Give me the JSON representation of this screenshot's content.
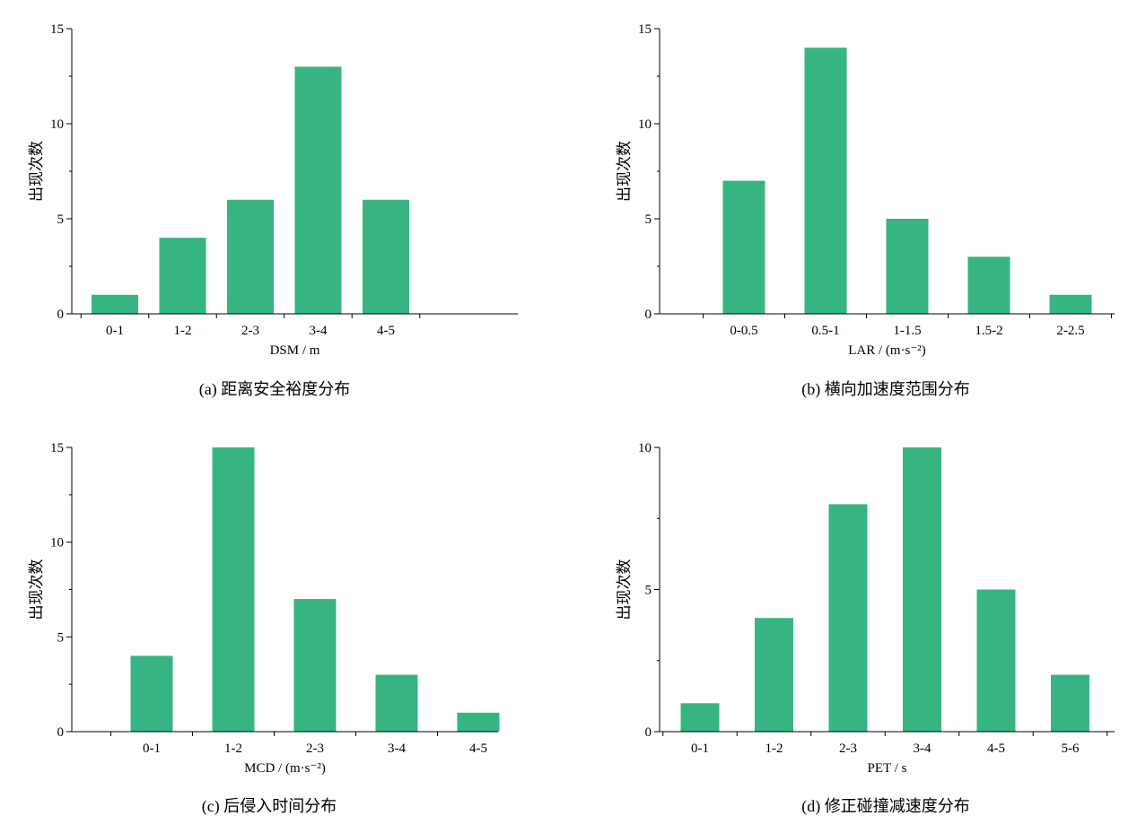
{
  "bar_color": "#36b583",
  "chart_data": [
    {
      "type": "bar",
      "caption": "(a)  距离安全裕度分布",
      "xlabel": "DSM / m",
      "ylabel": "出现次数",
      "categories": [
        "0-1",
        "1-2",
        "2-3",
        "3-4",
        "4-5"
      ],
      "values": [
        1,
        4,
        6,
        13,
        6
      ],
      "ylim": [
        0,
        15
      ],
      "yticks": [
        "0",
        "5",
        "10",
        "15"
      ]
    },
    {
      "type": "bar",
      "caption": "(b)  横向加速度范围分布",
      "xlabel": "LAR / (m·s⁻²)",
      "ylabel": "出现次数",
      "categories": [
        "0-0.5",
        "0.5-1",
        "1-1.5",
        "1.5-2",
        "2-2.5"
      ],
      "values": [
        7,
        14,
        5,
        3,
        1
      ],
      "ylim": [
        0,
        15
      ],
      "yticks": [
        "0",
        "5",
        "10",
        "15"
      ]
    },
    {
      "type": "bar",
      "caption": "(c)  后侵入时间分布",
      "xlabel": "MCD / (m·s⁻²)",
      "ylabel": "出现次数",
      "categories": [
        "0-1",
        "1-2",
        "2-3",
        "3-4",
        "4-5"
      ],
      "values": [
        4,
        15,
        7,
        3,
        1
      ],
      "ylim": [
        0,
        15
      ],
      "yticks": [
        "0",
        "5",
        "10",
        "15"
      ]
    },
    {
      "type": "bar",
      "caption": "(d)  修正碰撞减速度分布",
      "xlabel": "PET / s",
      "ylabel": "出现次数",
      "categories": [
        "0-1",
        "1-2",
        "2-3",
        "3-4",
        "4-5",
        "5-6"
      ],
      "values": [
        1,
        4,
        8,
        10,
        5,
        2
      ],
      "ylim": [
        0,
        10
      ],
      "yticks": [
        "0",
        "5",
        "10"
      ]
    }
  ]
}
